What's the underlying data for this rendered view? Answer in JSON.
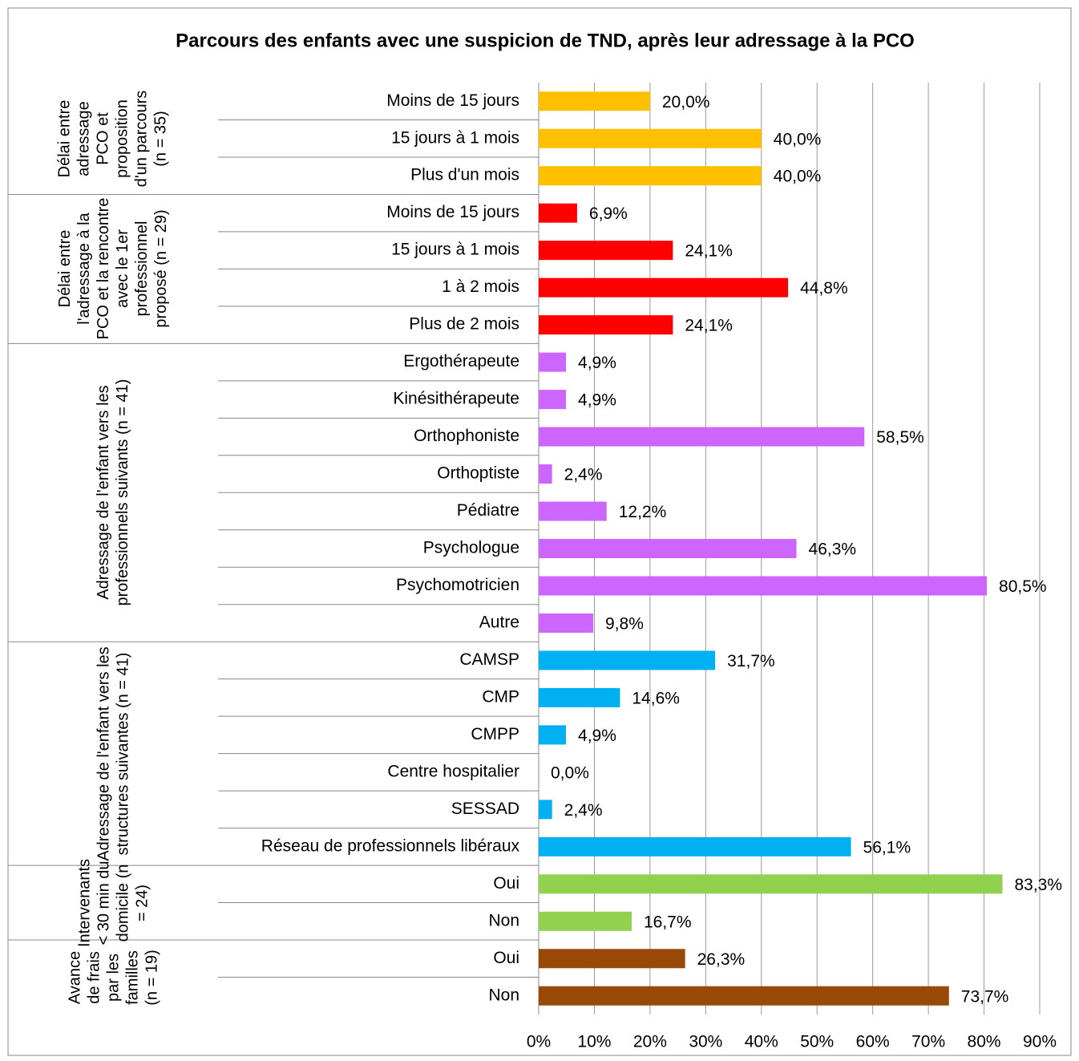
{
  "chart_data": {
    "type": "bar",
    "orientation": "horizontal",
    "title": "Parcours des enfants avec une suspicion de TND, après leur adressage à la PCO",
    "xlim": [
      0,
      90
    ],
    "xticks": [
      {
        "value": 0,
        "label": "0%"
      },
      {
        "value": 10,
        "label": "10%"
      },
      {
        "value": 20,
        "label": "20%"
      },
      {
        "value": 30,
        "label": "30%"
      },
      {
        "value": 40,
        "label": "40%"
      },
      {
        "value": 50,
        "label": "50%"
      },
      {
        "value": 60,
        "label": "60%"
      },
      {
        "value": 70,
        "label": "70%"
      },
      {
        "value": 80,
        "label": "80%"
      },
      {
        "value": 90,
        "label": "90%"
      }
    ],
    "grid": true,
    "groups": [
      {
        "label": "Délai entre adressage PCO et proposition d'un parcours (n = 35)",
        "color": "#ffc000",
        "categories": [
          "Moins de 15 jours",
          "15 jours à 1 mois",
          "Plus d'un mois"
        ],
        "values": [
          20.0,
          40.0,
          40.0
        ],
        "value_labels": [
          "20,0%",
          "40,0%",
          "40,0%"
        ]
      },
      {
        "label": "Délai entre l'adressage à la PCO et la rencontre avec le 1er professionnel proposé (n = 29)",
        "color": "#ff0000",
        "categories": [
          "Moins de 15 jours",
          "15 jours à 1 mois",
          "1 à 2 mois",
          "Plus de 2 mois"
        ],
        "values": [
          6.9,
          24.1,
          44.8,
          24.1
        ],
        "value_labels": [
          "6,9%",
          "24,1%",
          "44,8%",
          "24,1%"
        ]
      },
      {
        "label": "Adressage de l'enfant vers les professionnels suivants (n = 41)",
        "color": "#cc66ff",
        "categories": [
          "Ergothérapeute",
          "Kinésithérapeute",
          "Orthophoniste",
          "Orthoptiste",
          "Pédiatre",
          "Psychologue",
          "Psychomotricien",
          "Autre"
        ],
        "values": [
          4.9,
          4.9,
          58.5,
          2.4,
          12.2,
          46.3,
          80.5,
          9.8
        ],
        "value_labels": [
          "4,9%",
          "4,9%",
          "58,5%",
          "2,4%",
          "12,2%",
          "46,3%",
          "80,5%",
          "9,8%"
        ]
      },
      {
        "label": "Adressage de l'enfant vers les structures suivantes (n = 41)",
        "color": "#00b0f0",
        "categories": [
          "CAMSP",
          "CMP",
          "CMPP",
          "Centre hospitalier",
          "SESSAD",
          "Réseau de professionnels libéraux"
        ],
        "values": [
          31.7,
          14.6,
          4.9,
          0.0,
          2.4,
          56.1
        ],
        "value_labels": [
          "31,7%",
          "14,6%",
          "4,9%",
          "0,0%",
          "2,4%",
          "56,1%"
        ]
      },
      {
        "label": "Intervenants < 30 min du domicile (n = 24)",
        "color": "#92d050",
        "categories": [
          "Oui",
          "Non"
        ],
        "values": [
          83.3,
          16.7
        ],
        "value_labels": [
          "83,3%",
          "16,7%"
        ]
      },
      {
        "label": "Avance de frais par les familles (n = 19)",
        "color": "#984807",
        "categories": [
          "Oui",
          "Non"
        ],
        "values": [
          26.3,
          73.7
        ],
        "value_labels": [
          "26,3%",
          "73,7%"
        ]
      }
    ]
  }
}
